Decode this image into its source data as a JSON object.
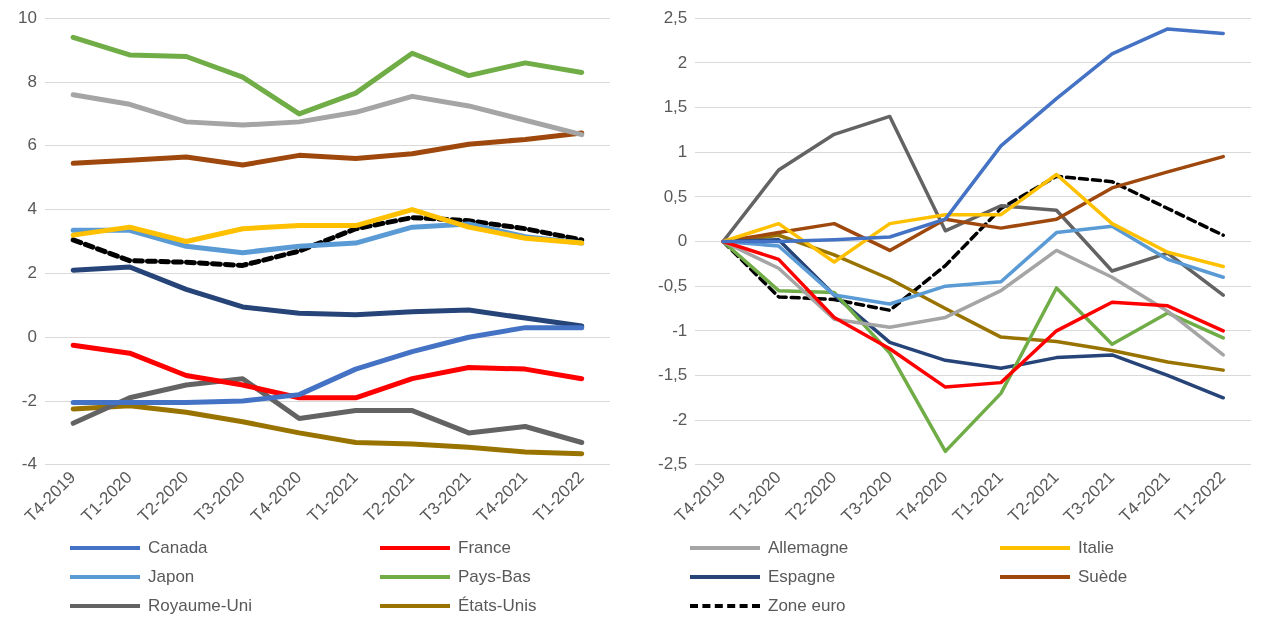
{
  "chart_data": [
    {
      "type": "line",
      "categories": [
        "T4-2019",
        "T1-2020",
        "T2-2020",
        "T3-2020",
        "T4-2020",
        "T1-2021",
        "T2-2021",
        "T3-2021",
        "T4-2021",
        "T1-2022"
      ],
      "ylim": [
        -4,
        10
      ],
      "yticks": [
        -4,
        -2,
        0,
        2,
        4,
        6,
        8,
        10
      ],
      "grid": "y",
      "legend": "bottom",
      "marker": "none",
      "series": [
        {
          "name": "Canada",
          "color": "#4472c4",
          "values": [
            -2.05,
            -2.05,
            -2.05,
            -2.0,
            -1.8,
            -1.0,
            -0.45,
            0.0,
            0.3,
            0.3
          ]
        },
        {
          "name": "France",
          "color": "#ff0000",
          "values": [
            -0.25,
            -0.5,
            -1.2,
            -1.5,
            -1.9,
            -1.9,
            -1.3,
            -0.95,
            -1.0,
            -1.3
          ]
        },
        {
          "name": "Allemagne",
          "color": "#a5a5a5",
          "values": [
            7.6,
            7.3,
            6.75,
            6.65,
            6.75,
            7.05,
            7.55,
            7.25,
            6.8,
            6.35
          ]
        },
        {
          "name": "Italie",
          "color": "#ffc000",
          "values": [
            3.2,
            3.45,
            3.0,
            3.4,
            3.5,
            3.5,
            4.0,
            3.45,
            3.1,
            2.95
          ]
        },
        {
          "name": "Japon",
          "color": "#5b9bd5",
          "values": [
            3.35,
            3.35,
            2.85,
            2.65,
            2.85,
            2.95,
            3.45,
            3.55,
            3.15,
            2.95
          ]
        },
        {
          "name": "Pays-Bas",
          "color": "#70ad47",
          "values": [
            9.4,
            8.85,
            8.8,
            8.15,
            7.0,
            7.65,
            8.9,
            8.2,
            8.6,
            8.3
          ]
        },
        {
          "name": "Espagne",
          "color": "#264478",
          "values": [
            2.1,
            2.2,
            1.5,
            0.95,
            0.75,
            0.7,
            0.8,
            0.85,
            0.6,
            0.35
          ]
        },
        {
          "name": "Suède",
          "color": "#9e480e",
          "values": [
            5.45,
            5.55,
            5.65,
            5.4,
            5.7,
            5.6,
            5.75,
            6.05,
            6.2,
            6.4
          ]
        },
        {
          "name": "Royaume-Uni",
          "color": "#636363",
          "values": [
            -2.7,
            -1.9,
            -1.5,
            -1.3,
            -2.55,
            -2.3,
            -2.3,
            -3.0,
            -2.8,
            -3.3
          ]
        },
        {
          "name": "États-Unis",
          "color": "#997300",
          "values": [
            -2.25,
            -2.15,
            -2.35,
            -2.65,
            -3.0,
            -3.3,
            -3.35,
            -3.45,
            -3.6,
            -3.65
          ]
        },
        {
          "name": "Zone euro",
          "color": "#000000",
          "line_style": "dashed",
          "values": [
            3.05,
            2.4,
            2.35,
            2.25,
            2.7,
            3.4,
            3.75,
            3.65,
            3.4,
            3.05
          ]
        }
      ]
    },
    {
      "type": "line",
      "categories": [
        "T4-2019",
        "T1-2020",
        "T2-2020",
        "T3-2020",
        "T4-2020",
        "T1-2021",
        "T2-2021",
        "T3-2021",
        "T4-2021",
        "T1-2022"
      ],
      "ylim": [
        -2.5,
        2.5
      ],
      "yticks": [
        {
          "value": -2.5,
          "label": "-2,5"
        },
        {
          "value": -2,
          "label": "-2"
        },
        {
          "value": -1.5,
          "label": "-1,5"
        },
        {
          "value": -1,
          "label": "-1"
        },
        {
          "value": -0.5,
          "label": "-0,5"
        },
        {
          "value": 0,
          "label": "0"
        },
        {
          "value": 0.5,
          "label": "0,5"
        },
        {
          "value": 1,
          "label": "1"
        },
        {
          "value": 1.5,
          "label": "1,5"
        },
        {
          "value": 2,
          "label": "2"
        },
        {
          "value": 2.5,
          "label": "2,5"
        }
      ],
      "grid": "y",
      "marker": "none",
      "series": [
        {
          "color": "#4472c4",
          "values": [
            0,
            0,
            0.02,
            0.05,
            0.25,
            1.07,
            1.6,
            2.1,
            2.38,
            2.33
          ]
        },
        {
          "color": "#ff0000",
          "values": [
            0,
            -0.2,
            -0.85,
            -1.2,
            -1.63,
            -1.58,
            -1.0,
            -0.68,
            -0.72,
            -1.0
          ]
        },
        {
          "color": "#a5a5a5",
          "values": [
            0,
            -0.3,
            -0.87,
            -0.96,
            -0.85,
            -0.55,
            -0.1,
            -0.4,
            -0.78,
            -1.27
          ]
        },
        {
          "color": "#ffc000",
          "values": [
            0,
            0.2,
            -0.23,
            0.2,
            0.3,
            0.3,
            0.75,
            0.2,
            -0.12,
            -0.28
          ]
        },
        {
          "color": "#5b9bd5",
          "values": [
            0,
            -0.05,
            -0.6,
            -0.7,
            -0.5,
            -0.45,
            0.1,
            0.17,
            -0.2,
            -0.4
          ]
        },
        {
          "color": "#70ad47",
          "values": [
            0,
            -0.55,
            -0.57,
            -1.25,
            -2.35,
            -1.7,
            -0.52,
            -1.15,
            -0.8,
            -1.08
          ]
        },
        {
          "color": "#264478",
          "values": [
            0,
            0.02,
            -0.6,
            -1.13,
            -1.33,
            -1.42,
            -1.3,
            -1.27,
            -1.5,
            -1.75
          ]
        },
        {
          "color": "#9e480e",
          "values": [
            0,
            0.1,
            0.2,
            -0.1,
            0.25,
            0.15,
            0.25,
            0.6,
            0.78,
            0.95
          ]
        },
        {
          "color": "#636363",
          "values": [
            0,
            0.8,
            1.2,
            1.4,
            0.12,
            0.4,
            0.35,
            -0.33,
            -0.13,
            -0.6
          ]
        },
        {
          "color": "#997300",
          "values": [
            0,
            0.07,
            -0.15,
            -0.42,
            -0.75,
            -1.07,
            -1.12,
            -1.22,
            -1.35,
            -1.44
          ]
        },
        {
          "color": "#000000",
          "line_style": "dashed",
          "values": [
            0,
            -0.62,
            -0.65,
            -0.77,
            -0.27,
            0.37,
            0.73,
            0.67,
            0.37,
            0.07
          ]
        }
      ]
    }
  ]
}
